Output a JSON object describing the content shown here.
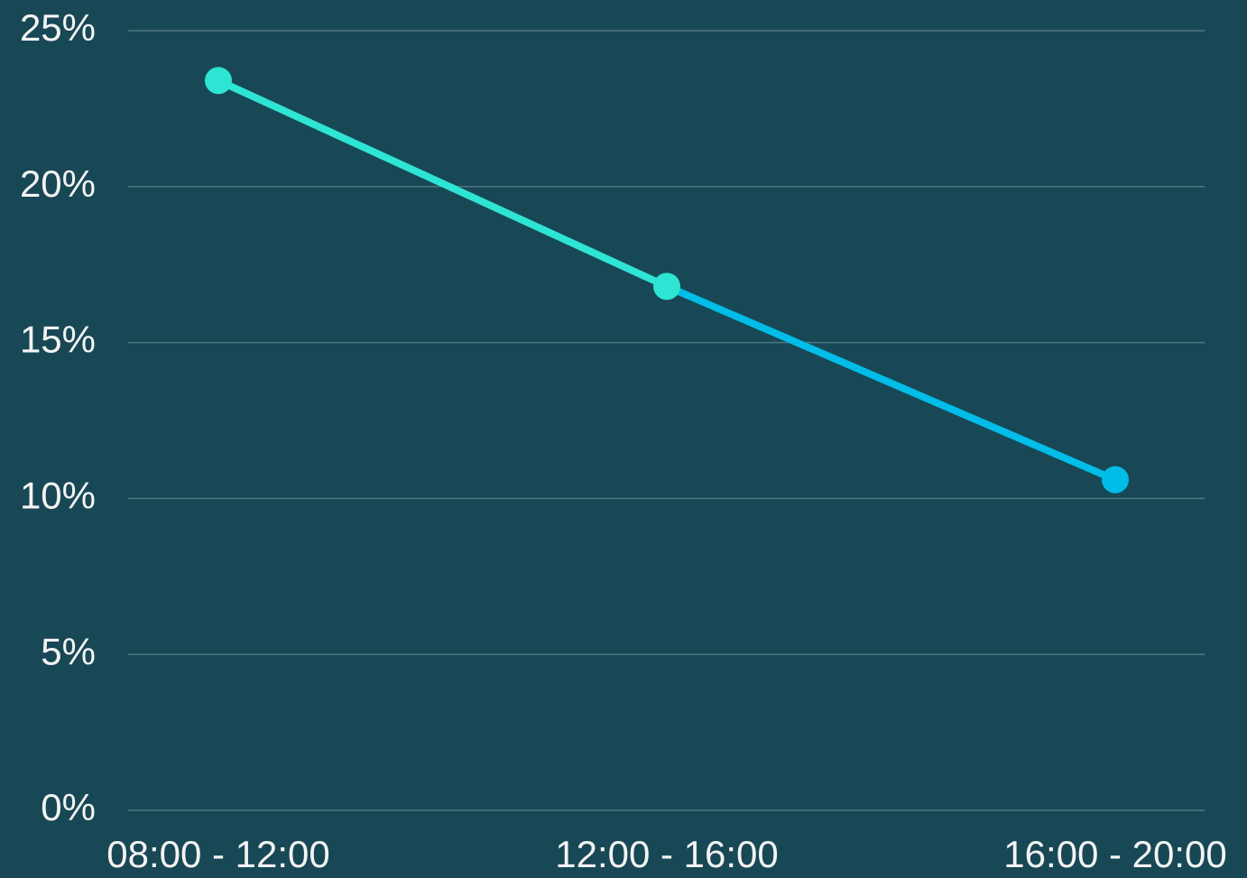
{
  "chart_data": {
    "type": "line",
    "categories": [
      "08:00 - 12:00",
      "12:00 - 16:00",
      "16:00 - 20:00"
    ],
    "values": [
      23.4,
      16.8,
      10.6
    ],
    "colors": [
      "#2ee5d3",
      "#2ee5d3",
      "#00bde8"
    ],
    "ylim": [
      0,
      25
    ],
    "yticks": [
      {
        "value": 0,
        "label": "0%"
      },
      {
        "value": 5,
        "label": "5%"
      },
      {
        "value": 10,
        "label": "10%"
      },
      {
        "value": 15,
        "label": "15%"
      },
      {
        "value": 20,
        "label": "20%"
      },
      {
        "value": 25,
        "label": "25%"
      }
    ],
    "grid": true
  }
}
